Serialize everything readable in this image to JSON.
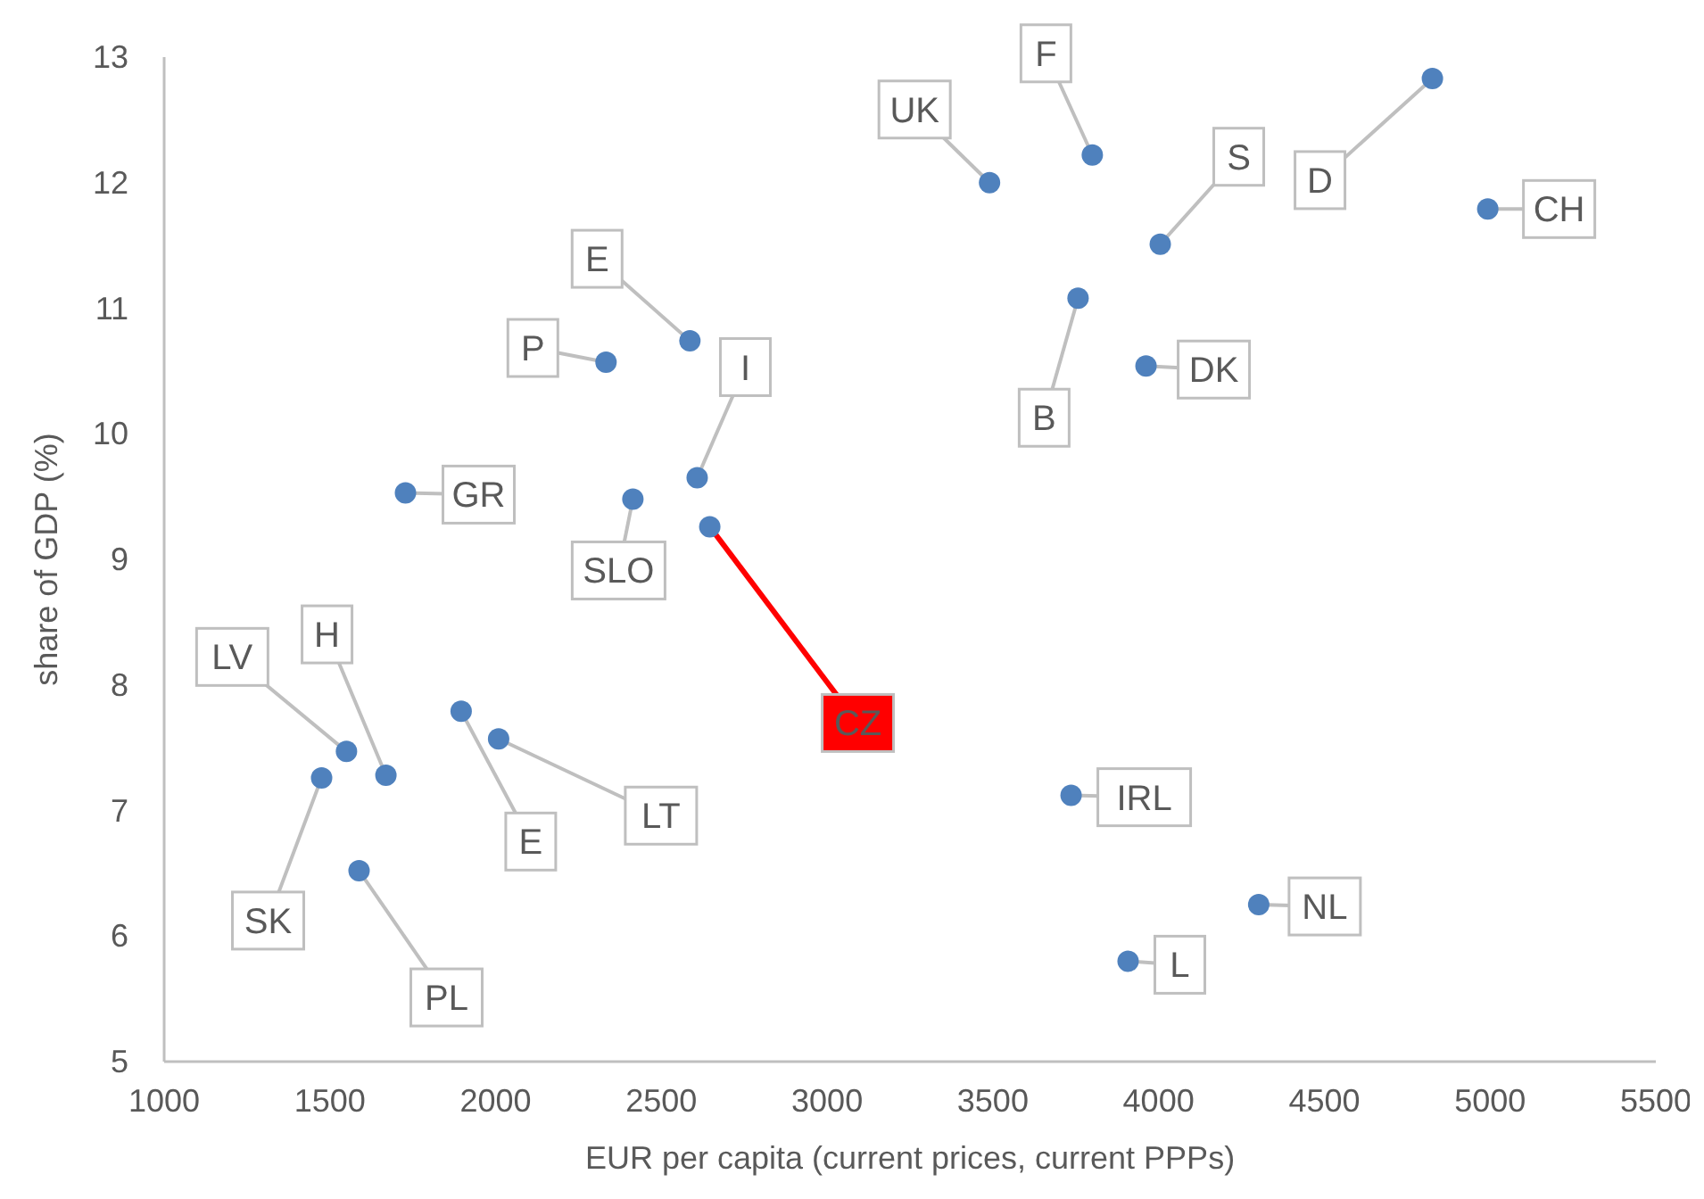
{
  "chart_data": {
    "type": "scatter",
    "xlabel": "EUR per capita (current prices, current PPPs)",
    "ylabel": "share of GDP (%)",
    "x": [
      3490,
      3800,
      4005,
      4826,
      4993,
      3757,
      3962,
      2586,
      2333,
      2608,
      1728,
      2414,
      2646,
      1550,
      1669,
      1475,
      1896,
      2009,
      1588,
      3736,
      4302,
      3908
    ],
    "series": [
      {
        "color": "#4f81bd",
        "values": [
          12.0,
          12.22,
          11.51,
          12.83,
          11.79,
          11.08,
          10.54,
          10.74,
          10.57,
          9.65,
          9.53,
          9.48,
          9.26,
          7.47,
          7.28,
          7.26,
          7.79,
          7.57,
          6.52,
          7.12,
          6.25,
          5.8
        ]
      }
    ],
    "xlim": [
      1000,
      5500
    ],
    "xticks": [
      1000,
      1500,
      2000,
      2500,
      3000,
      3500,
      4000,
      4500,
      5000,
      5500
    ],
    "ylim": [
      5,
      13
    ],
    "yticks": [
      5,
      6,
      7,
      8,
      9,
      10,
      11,
      12,
      13
    ],
    "grid": false,
    "marker": "circle",
    "annotations": [
      {
        "text": "UK",
        "x": 3490,
        "y": 12.0
      },
      {
        "text": "F",
        "x": 3800,
        "y": 12.22
      },
      {
        "text": "S",
        "x": 4005,
        "y": 11.51
      },
      {
        "text": "D",
        "x": 4826,
        "y": 12.83
      },
      {
        "text": "CH",
        "x": 4993,
        "y": 11.79
      },
      {
        "text": "B",
        "x": 3757,
        "y": 11.08
      },
      {
        "text": "DK",
        "x": 3962,
        "y": 10.54
      },
      {
        "text": "E",
        "x": 2586,
        "y": 10.74
      },
      {
        "text": "P",
        "x": 2333,
        "y": 10.57
      },
      {
        "text": "I",
        "x": 2608,
        "y": 9.65
      },
      {
        "text": "GR",
        "x": 1728,
        "y": 9.53
      },
      {
        "text": "SLO",
        "x": 2414,
        "y": 9.48
      },
      {
        "text": "CZ",
        "x": 2646,
        "y": 9.26
      },
      {
        "text": "LV",
        "x": 1550,
        "y": 7.47
      },
      {
        "text": "H",
        "x": 1669,
        "y": 7.28
      },
      {
        "text": "SK",
        "x": 1475,
        "y": 7.26
      },
      {
        "text": "E",
        "x": 1896,
        "y": 7.79
      },
      {
        "text": "LT",
        "x": 2009,
        "y": 7.57
      },
      {
        "text": "PL",
        "x": 1588,
        "y": 6.52
      },
      {
        "text": "IRL",
        "x": 3736,
        "y": 7.12
      },
      {
        "text": "NL",
        "x": 4302,
        "y": 6.25
      },
      {
        "text": "L",
        "x": 3908,
        "y": 5.8
      }
    ]
  }
}
